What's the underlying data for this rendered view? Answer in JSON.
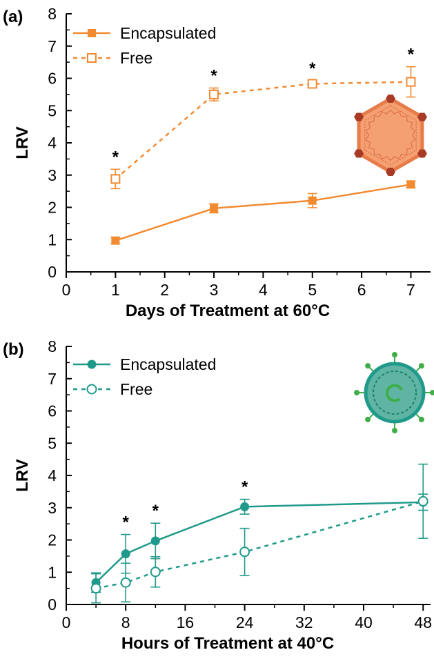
{
  "chart_data": [
    {
      "type": "line",
      "panel_label": "(a)",
      "xlabel": "Days of Treatment at 60°C",
      "ylabel": "LRV",
      "xlim": [
        0,
        7.4
      ],
      "ylim": [
        0,
        8
      ],
      "xticks": [
        0,
        1,
        2,
        3,
        4,
        5,
        6,
        7
      ],
      "yticks": [
        0,
        1,
        2,
        3,
        4,
        5,
        6,
        7,
        8
      ],
      "grid": false,
      "legend_position": "top-left",
      "significance_marker": "*",
      "icon": "non-enveloped-virus-icon",
      "series": [
        {
          "name": "Encapsulated",
          "color": "#f28a30",
          "style": "solid",
          "marker": "filled-square",
          "x": [
            1,
            3,
            5,
            7
          ],
          "y": [
            0.97,
            1.97,
            2.21,
            2.71
          ],
          "err": [
            0.1,
            0.14,
            0.22,
            0.1
          ]
        },
        {
          "name": "Free",
          "color": "#f28a30",
          "style": "dashed",
          "marker": "open-square",
          "x": [
            1,
            3,
            5,
            7
          ],
          "y": [
            2.88,
            5.5,
            5.83,
            5.89
          ],
          "err": [
            0.3,
            0.2,
            0.1,
            0.47
          ]
        }
      ],
      "significant_x": [
        1,
        3,
        5,
        7
      ]
    },
    {
      "type": "line",
      "panel_label": "(b)",
      "xlabel": "Hours of Treatment at 40°C",
      "ylabel": "LRV",
      "xlim": [
        0,
        49
      ],
      "ylim": [
        0,
        8
      ],
      "xticks": [
        0,
        8,
        16,
        24,
        32,
        40,
        48
      ],
      "yticks": [
        0,
        1,
        2,
        3,
        4,
        5,
        6,
        7,
        8
      ],
      "grid": false,
      "legend_position": "top-left",
      "significance_marker": "*",
      "icon": "enveloped-virus-icon",
      "series": [
        {
          "name": "Encapsulated",
          "color": "#1f9a8a",
          "style": "solid",
          "marker": "filled-circle",
          "x": [
            4,
            8,
            12,
            24,
            48
          ],
          "y": [
            0.68,
            1.57,
            1.97,
            3.03,
            3.17
          ],
          "err": [
            0.3,
            0.6,
            0.55,
            0.23,
            0.25
          ]
        },
        {
          "name": "Free",
          "color": "#1f9a8a",
          "style": "dashed",
          "marker": "open-circle",
          "x": [
            4,
            8,
            12,
            24,
            48
          ],
          "y": [
            0.5,
            0.68,
            1.01,
            1.63,
            3.2
          ],
          "err": [
            0.45,
            0.6,
            0.47,
            0.73,
            1.15
          ]
        }
      ],
      "significant_x": [
        8,
        12,
        24
      ]
    }
  ]
}
